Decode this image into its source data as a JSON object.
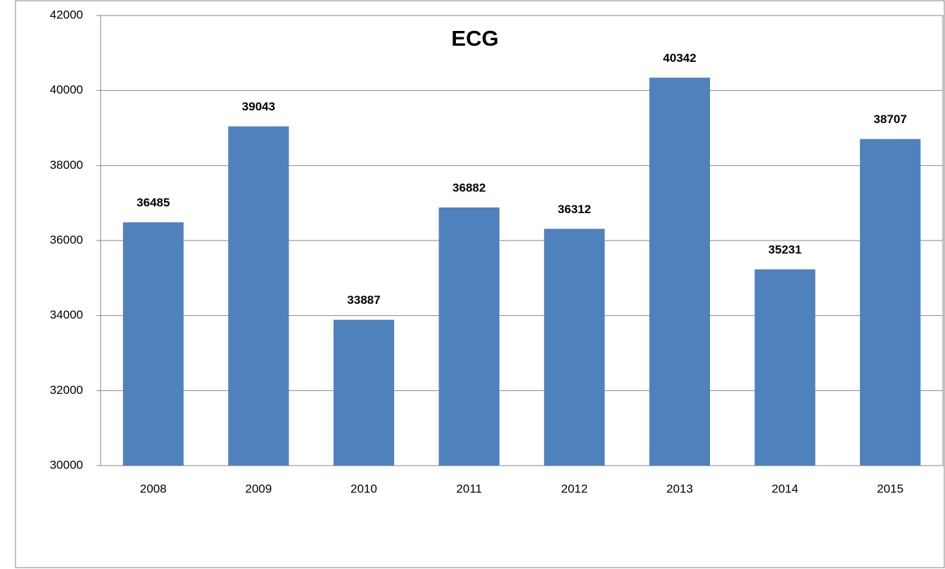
{
  "chart_data": {
    "type": "bar",
    "title": "ECG",
    "categories": [
      "2008",
      "2009",
      "2010",
      "2011",
      "2012",
      "2013",
      "2014",
      "2015"
    ],
    "values": [
      36485,
      39043,
      33887,
      36882,
      36312,
      40342,
      35231,
      38707
    ],
    "color": "#4f81bd",
    "ylim": [
      30000,
      42000
    ],
    "yticks": [
      30000,
      32000,
      34000,
      36000,
      38000,
      40000,
      42000
    ],
    "grid": true
  }
}
